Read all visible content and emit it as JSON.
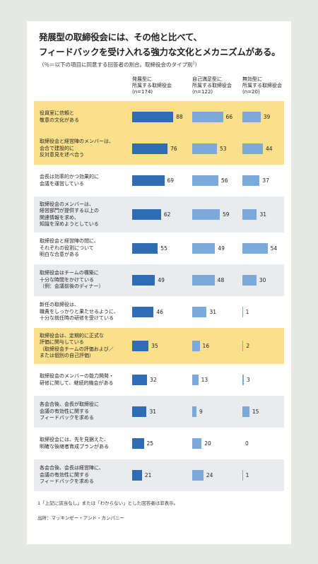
{
  "chart_data": {
    "type": "bar",
    "title": "発展型の取締役会には、その他と比べて、\nフィードバックを受け入れる強力な文化とメカニズムがある。",
    "subtitle": "（％＝以下の項目に同意する回答者の割合。取締役会のタイプ別",
    "subtitle_note": "1",
    "subtitle_end": "）",
    "categories": [
      "役員室に信頼と\n敬意の文化がある",
      "取締役会と経営陣のメンバーは、\n会合で建設的に\n反対意見を述べ合う",
      "会長は効率的かつ効果的に\n会議を運営している",
      "取締役会のメンバーは、\n経営部門が提供する以上の\n関連情報を求め、\n知識を深めようとしている",
      "取締役会と経営陣の間に、\nそれぞれの役割について\n明白な合意がある",
      "取締役会はチームの構築に\n十分な時間をかけている\n（例：会議前後のディナー）",
      "新任の取締役は、\n職責をしっかりと果たせるように、\n十分な就任時の研修を受けている",
      "取締役会は、定期的に正式な\n評価に関与している\n（取締役会チームの評価および／\nまたは個別の自己評価）",
      "取締役会のメンバーの能力開発・\n研修に関して、継続的機会がある",
      "各会合後、会長が取締役に\n会議の有効性に関する\nフィードバックを求める",
      "取締役会には、先を見据えた、\n明確な後継者育成プランがある",
      "各会合後、会長は経営陣に、\n会議の有効性に関する\nフィードバックを求める"
    ],
    "row_colors": [
      "#fbe08c",
      "#fbe08c",
      "#ffffff",
      "#e9ebee",
      "#ffffff",
      "#e9ebee",
      "#ffffff",
      "#fbe08c",
      "#ffffff",
      "#e9ebee",
      "#ffffff",
      "#e9ebee"
    ],
    "series": [
      {
        "name": "発展型に\n所属する取締役会\n(n=174)",
        "color": "#2e6db4",
        "values": [
          88,
          76,
          69,
          62,
          55,
          49,
          46,
          35,
          32,
          31,
          25,
          21
        ]
      },
      {
        "name": "自己満足型に\n所属する取締役会\n(n=122)",
        "color": "#7aa9da",
        "values": [
          66,
          53,
          56,
          59,
          49,
          48,
          31,
          16,
          13,
          9,
          20,
          24
        ]
      },
      {
        "name": "無効型に\n所属する取締役会\n(n=20)",
        "color": "#7aa9da",
        "values": [
          39,
          44,
          37,
          31,
          54,
          30,
          1,
          2,
          3,
          15,
          0,
          1
        ]
      }
    ],
    "footnote": "1「上記に該当なし」または「わからない」とした回答者は非表示。",
    "source": "出所：マッキンゼー・アンド・カンパニー"
  }
}
